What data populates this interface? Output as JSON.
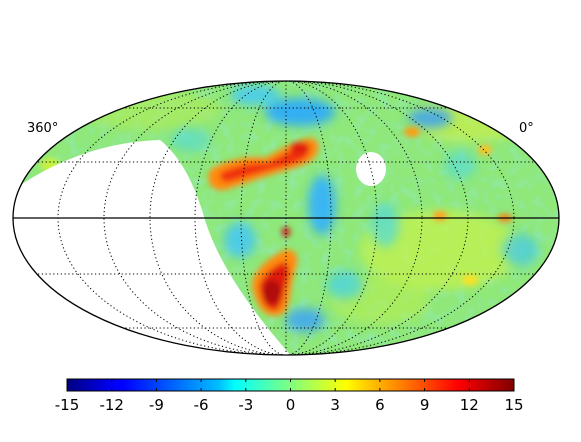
{
  "map": {
    "projection": "mollweide",
    "lon_label_left": "360°",
    "lon_label_right": "0°",
    "graticule": "dotted",
    "masked_regions": [
      "galactic-plane wedge (left)",
      "small hole (upper right)"
    ]
  },
  "colorbar": {
    "colormap": "jet",
    "range": [
      -15,
      15
    ],
    "ticks": [
      "-15",
      "-12",
      "-9",
      "-6",
      "-3",
      "0",
      "3",
      "6",
      "9",
      "12",
      "15"
    ]
  },
  "colors": {
    "outline": "#000000",
    "mask": "#ffffff",
    "background_level": "#8fe879"
  }
}
